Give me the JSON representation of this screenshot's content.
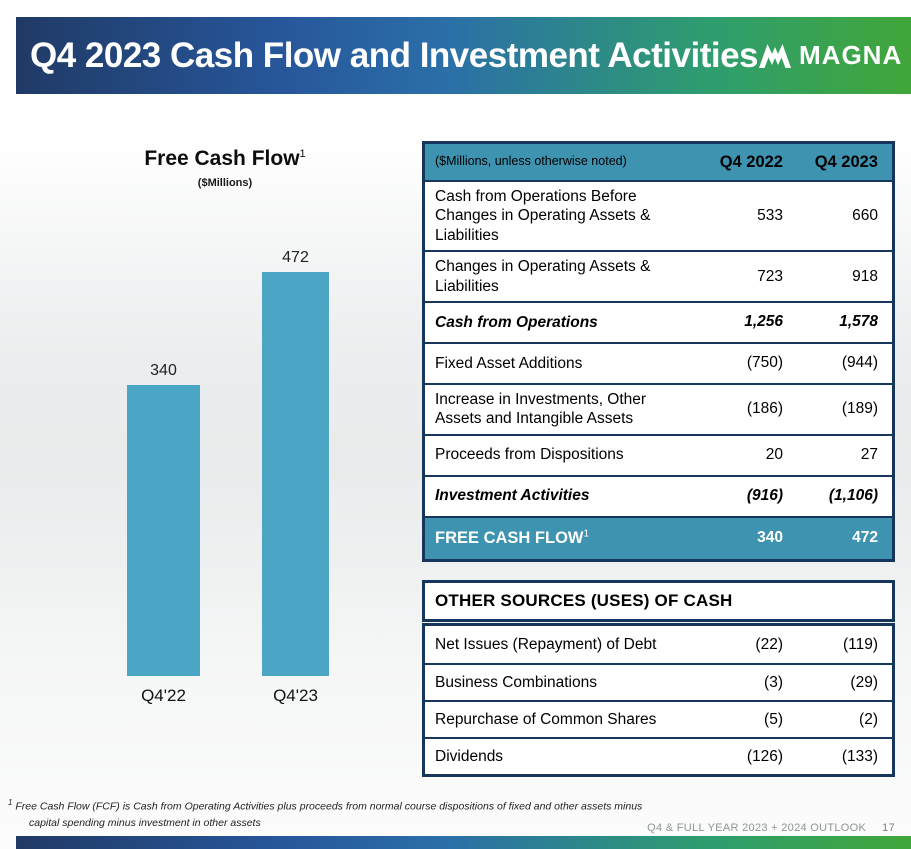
{
  "slide": {
    "title": "Q4 2023 Cash Flow and Investment Activities",
    "logo_text": "MAGNA",
    "footnote": {
      "marker": "1",
      "line1": "Free Cash Flow (FCF) is Cash from Operating Activities plus proceeds from normal course dispositions of fixed and other assets minus",
      "line2": "capital spending minus investment in other assets"
    },
    "footer": {
      "label": "Q4 & FULL YEAR 2023 + 2024 OUTLOOK",
      "page_number": "17"
    },
    "colors": {
      "header_gradient_start": "#203a66",
      "header_gradient_end": "#41a639",
      "table_teal": "#3e93b0",
      "bar_teal": "#4ba6c6",
      "navy_border": "#16365c"
    }
  },
  "chart_data": {
    "type": "bar",
    "title": "Free Cash Flow",
    "title_sup": "1",
    "subtitle": "($Millions)",
    "categories": [
      "Q4'22",
      "Q4'23"
    ],
    "values": [
      340,
      472
    ],
    "value_labels": [
      "340",
      "472"
    ],
    "ylim": [
      0,
      500
    ],
    "grid": false,
    "data_labels": true,
    "legend": "none",
    "bar_color": "#4ba6c6"
  },
  "cash_flow_table": {
    "header": {
      "label": "($Millions, unless otherwise noted)",
      "col_2022": "Q4 2022",
      "col_2023": "Q4 2023"
    },
    "rows": [
      {
        "label": "Cash from Operations Before Changes in Operating Assets & Liabilities",
        "v2022": "533",
        "v2023": "660"
      },
      {
        "label": "Changes in Operating Assets & Liabilities",
        "v2022": "723",
        "v2023": "918"
      },
      {
        "label": "Cash from Operations",
        "v2022": "1,256",
        "v2023": "1,578"
      },
      {
        "label": "Fixed Asset Additions",
        "v2022": "(750)",
        "v2023": "(944)"
      },
      {
        "label": "Increase in Investments, Other Assets and Intangible Assets",
        "v2022": "(186)",
        "v2023": "(189)"
      },
      {
        "label": "Proceeds from Dispositions",
        "v2022": "20",
        "v2023": "27"
      },
      {
        "label": "Investment Activities",
        "v2022": "(916)",
        "v2023": "(1,106)"
      },
      {
        "label": "FREE CASH FLOW",
        "sup": "1",
        "v2022": "340",
        "v2023": "472"
      }
    ]
  },
  "other_sources_table": {
    "header": "OTHER SOURCES (USES) OF CASH",
    "rows": [
      {
        "label": "Net Issues (Repayment) of Debt",
        "v2022": "(22)",
        "v2023": "(119)"
      },
      {
        "label": "Business Combinations",
        "v2022": "(3)",
        "v2023": "(29)"
      },
      {
        "label": "Repurchase of Common Shares",
        "v2022": "(5)",
        "v2023": "(2)"
      },
      {
        "label": "Dividends",
        "v2022": "(126)",
        "v2023": "(133)"
      }
    ]
  }
}
